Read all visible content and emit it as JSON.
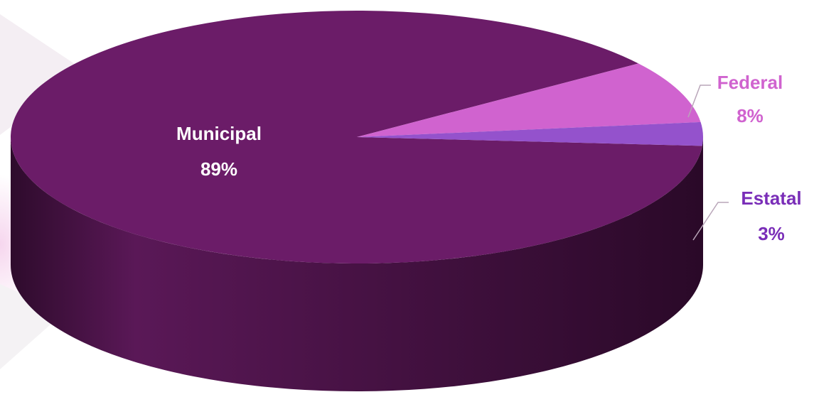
{
  "chart_data": {
    "type": "pie",
    "style": "3d",
    "slices": [
      {
        "label": "Municipal",
        "value": 89,
        "value_label": "89%",
        "color": "#6b1c68",
        "label_color": "#ffffff"
      },
      {
        "label": "Federal",
        "value": 8,
        "value_label": "8%",
        "color": "#d063cf",
        "label_color": "#d063cf"
      },
      {
        "label": "Estatal",
        "value": 3,
        "value_label": "3%",
        "color": "#9452cc",
        "label_color": "#7a2eb8"
      }
    ],
    "legend": "none",
    "data_labels": "category and percentage"
  }
}
